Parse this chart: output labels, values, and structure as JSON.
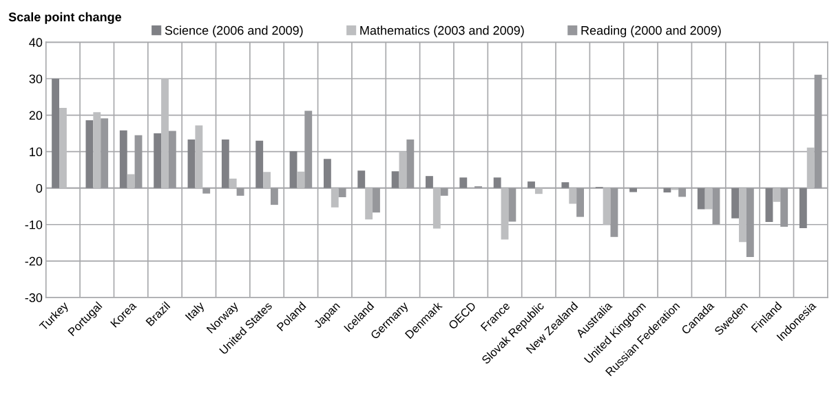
{
  "chart_data": {
    "type": "bar",
    "title": "Scale point change",
    "categories": [
      "Turkey",
      "Portugal",
      "Korea",
      "Brazil",
      "Italy",
      "Norway",
      "United States",
      "Poland",
      "Japan",
      "Iceland",
      "Germany",
      "Denmark",
      "OECD",
      "France",
      "Slovak Republic",
      "New Zealand",
      "Australia",
      "United Kingdom",
      "Russian Federation",
      "Canada",
      "Sweden",
      "Finland",
      "Indonesia"
    ],
    "series": [
      {
        "name": "Science (2006 and 2009)",
        "color": "#7f8085",
        "values": [
          30,
          18.6,
          15.8,
          15,
          13.3,
          13.3,
          13,
          10.1,
          8,
          4.8,
          4.6,
          3.3,
          2.9,
          2.9,
          1.8,
          1.6,
          0.3,
          -1.1,
          -1.2,
          -5.8,
          -8.3,
          -9.3,
          -11
        ]
      },
      {
        "name": "Mathematics (2003 and 2009)",
        "color": "#bdbec0",
        "values": [
          22,
          20.8,
          3.8,
          30,
          17.2,
          2.6,
          4.4,
          4.5,
          -5.3,
          -8.6,
          10,
          -11.1,
          null,
          -14.1,
          -1.6,
          -4.3,
          -10,
          null,
          -0.5,
          -5.8,
          -14.8,
          -3.8,
          11.1
        ]
      },
      {
        "name": "Reading (2000 and 2009)",
        "color": "#96979b",
        "values": [
          null,
          19.1,
          14.5,
          15.7,
          -1.5,
          -2.1,
          -4.6,
          21.2,
          -2.5,
          -6.7,
          13.3,
          -2.1,
          0.5,
          -9.2,
          null,
          -7.9,
          -13.4,
          null,
          -2.4,
          -10,
          -18.9,
          -10.6,
          31.1
        ]
      }
    ],
    "ylim": [
      -30,
      40
    ],
    "yticks": [
      -30,
      -20,
      -10,
      0,
      10,
      20,
      30,
      40
    ],
    "grid": true,
    "legend": "top"
  }
}
